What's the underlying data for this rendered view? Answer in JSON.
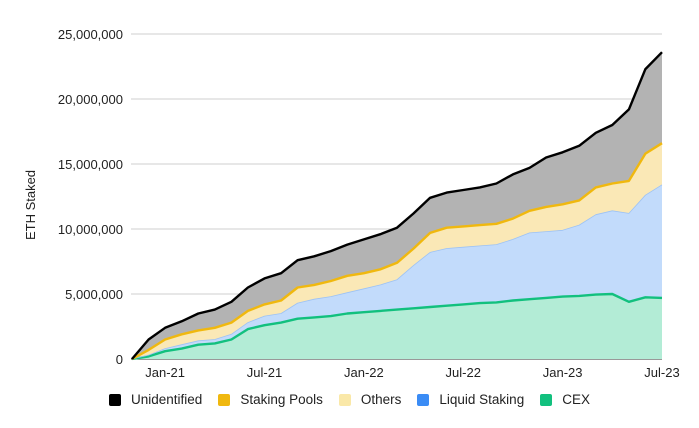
{
  "chart_data": {
    "type": "area",
    "stacked": true,
    "title": "",
    "xlabel": "",
    "ylabel": "ETH Staked",
    "ylim": [
      0,
      25000000
    ],
    "yticks": [
      "0",
      "5,000,000",
      "10,000,000",
      "15,000,000",
      "20,000,000",
      "25,000,000"
    ],
    "ytick_values": [
      0,
      5000000,
      10000000,
      15000000,
      20000000,
      25000000
    ],
    "xticks": [
      "Jan-21",
      "Jul-21",
      "Jan-22",
      "Jul-22",
      "Jan-23",
      "Jul-23"
    ],
    "xtick_dates": [
      "2021-01",
      "2021-07",
      "2022-01",
      "2022-07",
      "2023-01",
      "2023-07"
    ],
    "grid": true,
    "legend_position": "bottom",
    "x": [
      "2020-11",
      "2020-12",
      "2021-01",
      "2021-02",
      "2021-03",
      "2021-04",
      "2021-05",
      "2021-06",
      "2021-07",
      "2021-08",
      "2021-09",
      "2021-10",
      "2021-11",
      "2021-12",
      "2022-01",
      "2022-02",
      "2022-03",
      "2022-04",
      "2022-05",
      "2022-06",
      "2022-07",
      "2022-08",
      "2022-09",
      "2022-10",
      "2022-11",
      "2022-12",
      "2023-01",
      "2023-02",
      "2023-03",
      "2023-04",
      "2023-05",
      "2023-06",
      "2023-07"
    ],
    "series": [
      {
        "name": "CEX",
        "color": "#12c07e",
        "fill": "#b3ecd6",
        "values": [
          0,
          200000,
          600000,
          800000,
          1100000,
          1200000,
          1500000,
          2300000,
          2600000,
          2800000,
          3100000,
          3200000,
          3300000,
          3500000,
          3600000,
          3700000,
          3800000,
          3900000,
          4000000,
          4100000,
          4200000,
          4300000,
          4350000,
          4500000,
          4600000,
          4700000,
          4800000,
          4850000,
          4950000,
          5000000,
          4400000,
          4750000,
          4700000
        ]
      },
      {
        "name": "Liquid Staking",
        "color": "#3b8cf5",
        "fill": "#c2dbfb",
        "values": [
          0,
          100000,
          200000,
          300000,
          300000,
          300000,
          400000,
          500000,
          700000,
          700000,
          1200000,
          1400000,
          1500000,
          1600000,
          1800000,
          2000000,
          2300000,
          3300000,
          4200000,
          4400000,
          4400000,
          4400000,
          4450000,
          4700000,
          5100000,
          5100000,
          5100000,
          5450000,
          6150000,
          6400000,
          6800000,
          7850000,
          8700000
        ]
      },
      {
        "name": "Others",
        "color": "#fae8a8",
        "fill": "#fae8b6",
        "values": [
          0,
          300000,
          600000,
          700000,
          700000,
          800000,
          800000,
          800000,
          800000,
          900000,
          1100000,
          1000000,
          1100000,
          1200000,
          1100000,
          1100000,
          1200000,
          1200000,
          1400000,
          1500000,
          1500000,
          1500000,
          1500000,
          1500000,
          1600000,
          1800000,
          1900000,
          1800000,
          2000000,
          2000000,
          2400000,
          3100000,
          3100000
        ]
      },
      {
        "name": "Staking Pools",
        "color": "#f0b80f",
        "fill": "#f6d56a",
        "values": [
          0,
          100000,
          100000,
          100000,
          100000,
          100000,
          100000,
          100000,
          100000,
          100000,
          100000,
          100000,
          100000,
          100000,
          100000,
          100000,
          100000,
          100000,
          100000,
          100000,
          100000,
          100000,
          100000,
          100000,
          100000,
          100000,
          100000,
          100000,
          100000,
          100000,
          100000,
          100000,
          100000
        ]
      },
      {
        "name": "Unidentified",
        "color": "#000000",
        "fill": "#b3b3b3",
        "values": [
          0,
          800000,
          900000,
          1000000,
          1300000,
          1400000,
          1600000,
          1800000,
          2000000,
          2100000,
          2100000,
          2200000,
          2300000,
          2400000,
          2600000,
          2700000,
          2700000,
          2700000,
          2700000,
          2700000,
          2800000,
          2900000,
          3100000,
          3400000,
          3300000,
          3800000,
          4000000,
          4200000,
          4200000,
          4500000,
          5500000,
          6500000,
          7000000
        ]
      }
    ]
  },
  "legend": [
    {
      "label": "Unidentified",
      "color": "#000000"
    },
    {
      "label": "Staking Pools",
      "color": "#f0b80f"
    },
    {
      "label": "Others",
      "color": "#fae8a8"
    },
    {
      "label": "Liquid Staking",
      "color": "#3b8cf5"
    },
    {
      "label": "CEX",
      "color": "#12c07e"
    }
  ]
}
